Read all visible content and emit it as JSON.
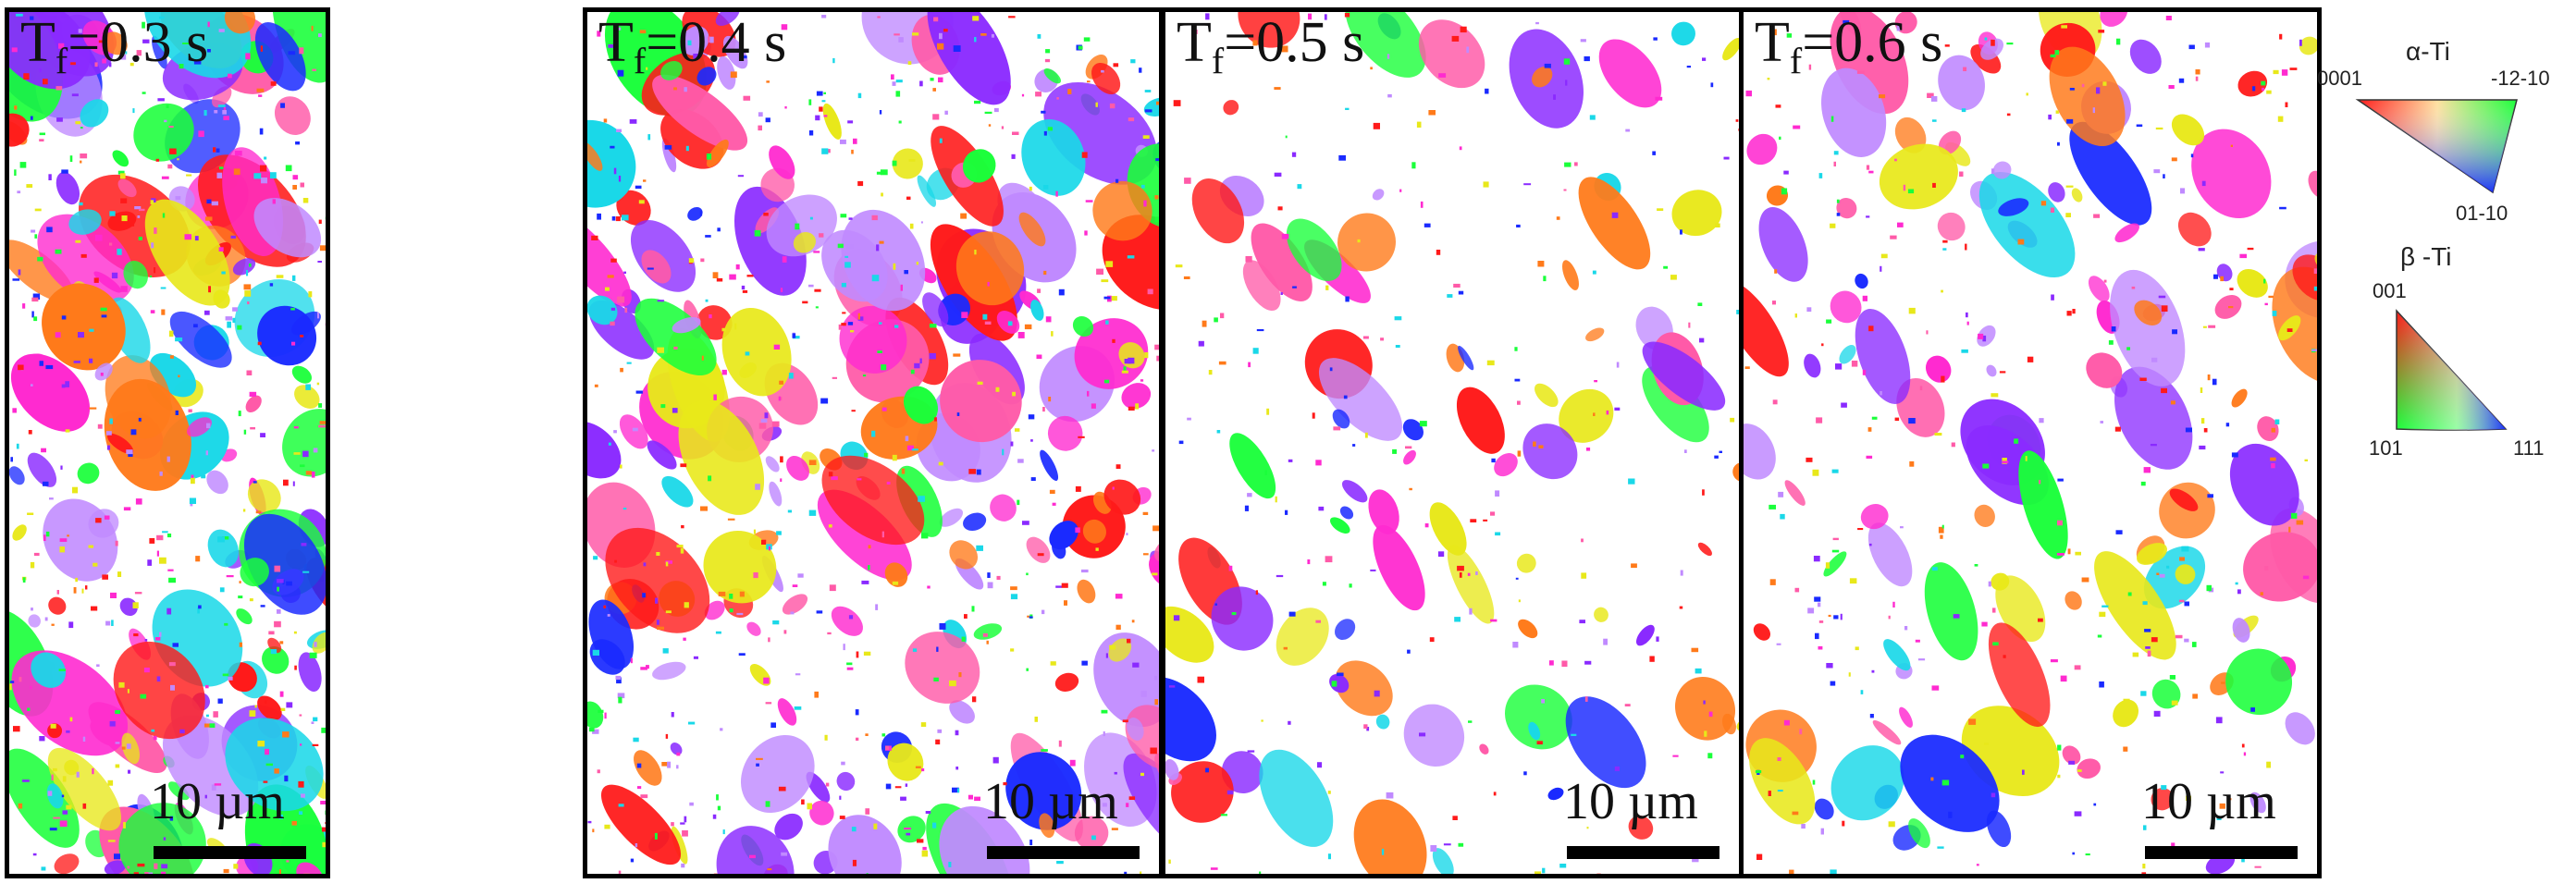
{
  "panels": [
    {
      "label_main": "T",
      "label_sub": "f",
      "label_value": "=0.3 s",
      "scalebar": "10 µm"
    },
    {
      "label_main": "T",
      "label_sub": "f",
      "label_value": "=0.4 s",
      "scalebar": "10 µm"
    },
    {
      "label_main": "T",
      "label_sub": "f",
      "label_value": "=0.5 s",
      "scalebar": "10 µm"
    },
    {
      "label_main": "T",
      "label_sub": "f",
      "label_value": "=0.6 s",
      "scalebar": "10 µm"
    }
  ],
  "legend": {
    "alpha": {
      "title": "α-Ti",
      "corner_left": "0001",
      "corner_right": "-12-10",
      "corner_bottom": "01-10"
    },
    "beta": {
      "title": "β -Ti",
      "corner_top": "001",
      "corner_left": "101",
      "corner_right": "111"
    }
  },
  "colors": {
    "red": "#ff1a1a",
    "orange": "#ff7a1a",
    "yellow": "#e8e81a",
    "green": "#1aff3a",
    "cyan": "#1ad8e8",
    "blue": "#1a2aff",
    "violet": "#8a2aff",
    "magenta": "#ff2ad0",
    "pink": "#ff5aa8",
    "lilac": "#c08aff"
  }
}
